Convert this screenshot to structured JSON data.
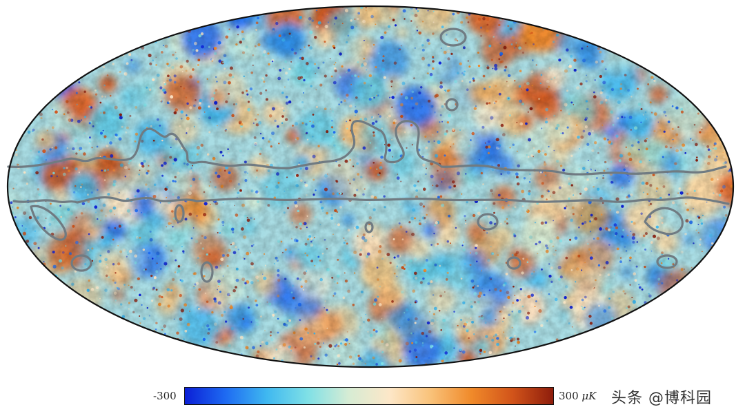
{
  "map": {
    "projection": "mollweide",
    "colormap": [
      "#0b1fd6",
      "#1e6bf2",
      "#3fb8f0",
      "#7fe0e6",
      "#d6ecd4",
      "#fde7c8",
      "#f9c27a",
      "#f08a2a",
      "#d2541a",
      "#8e1d0c"
    ],
    "contour_color": "#707b82",
    "outline_color": "#111111"
  },
  "colorbar": {
    "min_label": "-300",
    "max_value": "300",
    "unit": "μK",
    "range": [
      -300,
      300
    ]
  },
  "watermark": {
    "text": "头条 @博科园"
  }
}
